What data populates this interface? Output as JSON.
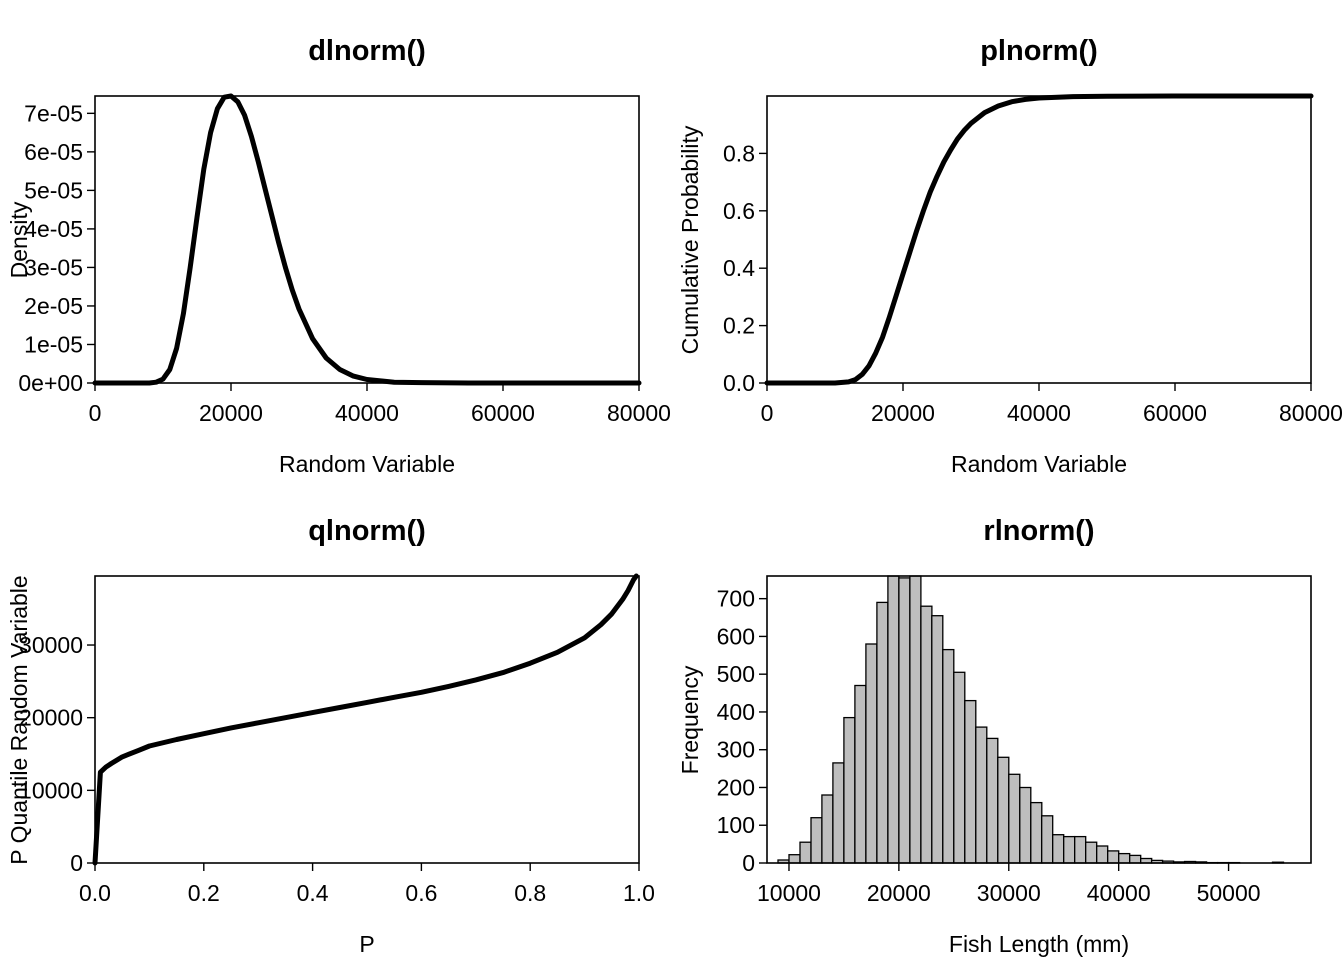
{
  "chart_data": [
    {
      "type": "line",
      "title": "dlnorm()",
      "xlabel": "Random Variable",
      "ylabel": "Density",
      "xlim": [
        0,
        80000
      ],
      "ylim": [
        0,
        7.45e-05
      ],
      "x_ticks": [
        0,
        20000,
        40000,
        60000,
        80000
      ],
      "x_tick_labels": [
        "0",
        "20000",
        "40000",
        "60000",
        "80000"
      ],
      "y_ticks": [
        0,
        1e-05,
        2e-05,
        3e-05,
        4e-05,
        5e-05,
        6e-05,
        7e-05
      ],
      "y_tick_labels": [
        "0e+00",
        "1e-05",
        "2e-05",
        "3e-05",
        "4e-05",
        "5e-05",
        "6e-05",
        "7e-05"
      ],
      "grid": false,
      "series": [
        {
          "x": [
            0,
            8000,
            9000,
            10000,
            11000,
            12000,
            13000,
            14000,
            15000,
            16000,
            17000,
            18000,
            19000,
            20000,
            21000,
            22000,
            23000,
            24000,
            25000,
            26000,
            27000,
            28000,
            29000,
            30000,
            32000,
            34000,
            36000,
            38000,
            40000,
            44000,
            48000,
            55000,
            65000,
            80000
          ],
          "y": [
            0,
            0.0,
            2e-07,
            1e-06,
            3.5e-06,
            9e-06,
            1.8e-05,
            3e-05,
            4.3e-05,
            5.55e-05,
            6.5e-05,
            7.12e-05,
            7.42e-05,
            7.45e-05,
            7.3e-05,
            6.95e-05,
            6.4e-05,
            5.75e-05,
            5.05e-05,
            4.35e-05,
            3.65e-05,
            3e-05,
            2.42e-05,
            1.92e-05,
            1.15e-05,
            6.5e-06,
            3.5e-06,
            1.8e-06,
            9e-07,
            2e-07,
            1e-07,
            0,
            0,
            0
          ]
        }
      ]
    },
    {
      "type": "line",
      "title": "plnorm()",
      "xlabel": "Random Variable",
      "ylabel": "Cumulative Probability",
      "xlim": [
        0,
        80000
      ],
      "ylim": [
        0,
        1
      ],
      "x_ticks": [
        0,
        20000,
        40000,
        60000,
        80000
      ],
      "x_tick_labels": [
        "0",
        "20000",
        "40000",
        "60000",
        "80000"
      ],
      "y_ticks": [
        0,
        0.2,
        0.4,
        0.6,
        0.8
      ],
      "y_tick_labels": [
        "0.0",
        "0.2",
        "0.4",
        "0.6",
        "0.8"
      ],
      "grid": false,
      "series": [
        {
          "x": [
            0,
            10000,
            12000,
            13000,
            14000,
            15000,
            16000,
            17000,
            18000,
            19000,
            20000,
            21000,
            22000,
            23000,
            24000,
            25000,
            26000,
            27000,
            28000,
            29000,
            30000,
            32000,
            34000,
            36000,
            38000,
            40000,
            45000,
            50000,
            60000,
            80000
          ],
          "y": [
            0,
            0.0,
            0.004,
            0.012,
            0.03,
            0.06,
            0.105,
            0.16,
            0.23,
            0.305,
            0.38,
            0.455,
            0.53,
            0.6,
            0.665,
            0.72,
            0.77,
            0.812,
            0.85,
            0.88,
            0.905,
            0.942,
            0.965,
            0.98,
            0.988,
            0.993,
            0.998,
            0.999,
            1.0,
            1.0
          ]
        }
      ]
    },
    {
      "type": "line",
      "title": "qlnorm()",
      "xlabel": "P",
      "ylabel": "P Quantile Random Variable",
      "xlim": [
        0,
        1
      ],
      "ylim": [
        0,
        39500
      ],
      "x_ticks": [
        0,
        0.2,
        0.4,
        0.6,
        0.8,
        1.0
      ],
      "x_tick_labels": [
        "0.0",
        "0.2",
        "0.4",
        "0.6",
        "0.8",
        "1.0"
      ],
      "y_ticks": [
        0,
        10000,
        20000,
        30000
      ],
      "y_tick_labels": [
        "0",
        "10000",
        "20000",
        "30000"
      ],
      "grid": false,
      "series": [
        {
          "x": [
            0,
            0.01,
            0.02,
            0.03,
            0.05,
            0.08,
            0.1,
            0.15,
            0.2,
            0.25,
            0.3,
            0.35,
            0.4,
            0.45,
            0.5,
            0.55,
            0.6,
            0.65,
            0.7,
            0.75,
            0.8,
            0.85,
            0.9,
            0.93,
            0.95,
            0.97,
            0.98,
            0.99,
            0.995
          ],
          "y": [
            0,
            12500,
            13200,
            13700,
            14600,
            15500,
            16100,
            17000,
            17800,
            18600,
            19300,
            20000,
            20700,
            21400,
            22100,
            22800,
            23500,
            24300,
            25200,
            26200,
            27500,
            29000,
            31000,
            32800,
            34300,
            36300,
            37500,
            39000,
            39500
          ]
        }
      ]
    },
    {
      "type": "bar",
      "title": "rlnorm()",
      "xlabel": "Fish Length (mm)",
      "ylabel": "Frequency",
      "xlim": [
        8000,
        57500
      ],
      "ylim": [
        0,
        760
      ],
      "x_ticks": [
        10000,
        20000,
        30000,
        40000,
        50000
      ],
      "x_tick_labels": [
        "10000",
        "20000",
        "30000",
        "40000",
        "50000"
      ],
      "y_ticks": [
        0,
        100,
        200,
        300,
        400,
        500,
        600,
        700
      ],
      "y_tick_labels": [
        "0",
        "100",
        "200",
        "300",
        "400",
        "500",
        "600",
        "700"
      ],
      "grid": false,
      "bin_width": 1000,
      "fill_color": "#bebebe",
      "bins": [
        {
          "start": 9000,
          "count": 8
        },
        {
          "start": 10000,
          "count": 22
        },
        {
          "start": 11000,
          "count": 55
        },
        {
          "start": 12000,
          "count": 120
        },
        {
          "start": 13000,
          "count": 180
        },
        {
          "start": 14000,
          "count": 265
        },
        {
          "start": 15000,
          "count": 385
        },
        {
          "start": 16000,
          "count": 470
        },
        {
          "start": 17000,
          "count": 580
        },
        {
          "start": 18000,
          "count": 690
        },
        {
          "start": 19000,
          "count": 775
        },
        {
          "start": 20000,
          "count": 755
        },
        {
          "start": 21000,
          "count": 770
        },
        {
          "start": 22000,
          "count": 680
        },
        {
          "start": 23000,
          "count": 655
        },
        {
          "start": 24000,
          "count": 565
        },
        {
          "start": 25000,
          "count": 505
        },
        {
          "start": 26000,
          "count": 430
        },
        {
          "start": 27000,
          "count": 360
        },
        {
          "start": 28000,
          "count": 330
        },
        {
          "start": 29000,
          "count": 280
        },
        {
          "start": 30000,
          "count": 235
        },
        {
          "start": 31000,
          "count": 200
        },
        {
          "start": 32000,
          "count": 160
        },
        {
          "start": 33000,
          "count": 125
        },
        {
          "start": 34000,
          "count": 75
        },
        {
          "start": 35000,
          "count": 70
        },
        {
          "start": 36000,
          "count": 70
        },
        {
          "start": 37000,
          "count": 55
        },
        {
          "start": 38000,
          "count": 45
        },
        {
          "start": 39000,
          "count": 32
        },
        {
          "start": 40000,
          "count": 25
        },
        {
          "start": 41000,
          "count": 20
        },
        {
          "start": 42000,
          "count": 12
        },
        {
          "start": 43000,
          "count": 7
        },
        {
          "start": 44000,
          "count": 5
        },
        {
          "start": 45000,
          "count": 3
        },
        {
          "start": 46000,
          "count": 4
        },
        {
          "start": 47000,
          "count": 3
        },
        {
          "start": 48000,
          "count": 1
        },
        {
          "start": 49000,
          "count": 1
        },
        {
          "start": 50000,
          "count": 1
        },
        {
          "start": 51000,
          "count": 0
        },
        {
          "start": 52000,
          "count": 0
        },
        {
          "start": 53000,
          "count": 0
        },
        {
          "start": 54000,
          "count": 2
        }
      ]
    }
  ]
}
